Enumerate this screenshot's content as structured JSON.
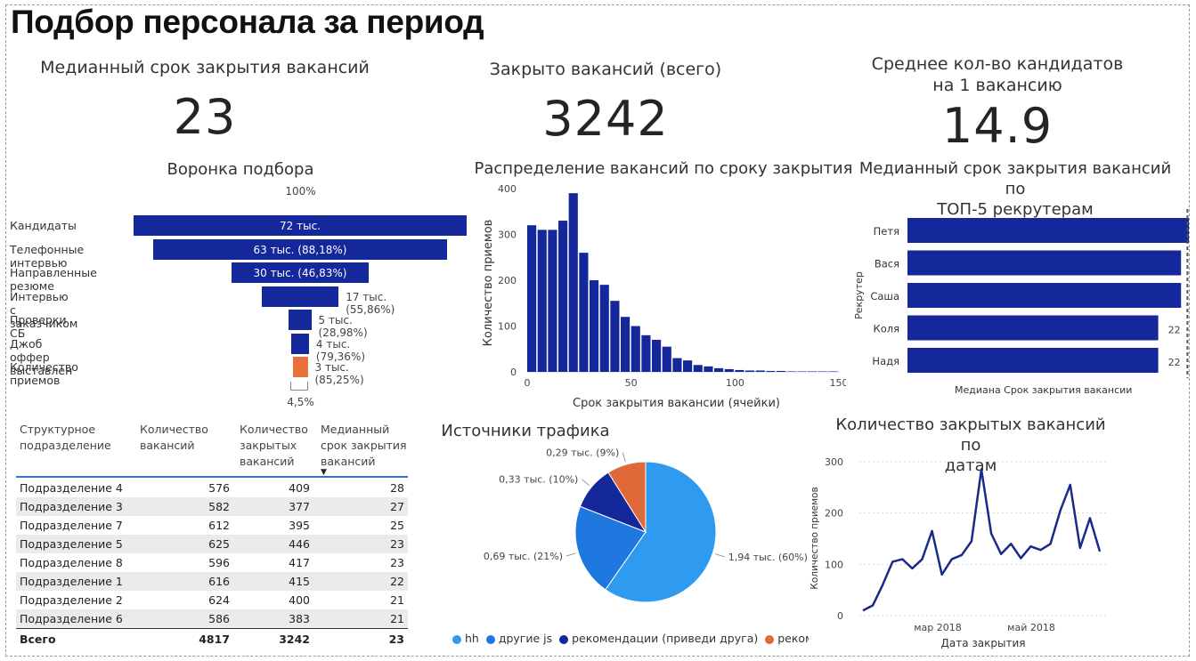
{
  "page": {
    "title": "Подбор персонала за период"
  },
  "kpis": {
    "median_close": {
      "label": "Медианный срок закрытия вакансий",
      "value": "23"
    },
    "closed_total": {
      "label": "Закрыто вакансий (всего)",
      "value": "3242"
    },
    "avg_candidates": {
      "label_line1": "Среднее кол-во кандидатов",
      "label_line2": "на 1 вакансию",
      "value": "14.9"
    }
  },
  "funnel": {
    "title": "Воронка подбора",
    "top_percent": "100%",
    "bottom_percent": "4,5%",
    "stages": [
      {
        "label": "Кандидаты",
        "value_label": "72 тыс.",
        "fraction": 1.0,
        "color": "#15289b"
      },
      {
        "label": "Телефонные интервью",
        "value_label": "63 тыс. (88,18%)",
        "fraction": 0.882,
        "color": "#15289b"
      },
      {
        "label": "Направленные резюме",
        "value_label": "30 тыс. (46,83%)",
        "fraction": 0.413,
        "color": "#15289b"
      },
      {
        "label": "Интервью с заказчиком",
        "value_label": "17 тыс. (55,86%)",
        "fraction": 0.231,
        "color": "#15289b"
      },
      {
        "label": "Проверки СБ",
        "value_label": "5 тыс. (28,98%)",
        "fraction": 0.067,
        "color": "#15289b"
      },
      {
        "label": "Джоб оффер выставлен",
        "value_label": "4 тыс. (79,36%)",
        "fraction": 0.053,
        "color": "#15289b"
      },
      {
        "label": "Количество приемов",
        "value_label": "3 тыс. (85,25%)",
        "fraction": 0.045,
        "color": "#e8703a"
      }
    ]
  },
  "histogram": {
    "title": "Распределение вакансий по сроку закрытия",
    "xlabel": "Срок закрытия вакансии (ячейки)",
    "ylabel": "Количество приемов",
    "y_ticks": [
      "0",
      "100",
      "200",
      "300",
      "400"
    ],
    "x_ticks": [
      "0",
      "50",
      "100",
      "150"
    ]
  },
  "recruiters": {
    "title_line1": "Медианный срок закрытия вакансий по",
    "title_line2": "ТОП-5 рекрутерам",
    "ylabel": "Рекрутер",
    "xlabel": "Медиана Срок закрытия вакансии",
    "color": "#15289b"
  },
  "table": {
    "headers": [
      [
        "Структурное",
        "подразделение"
      ],
      [
        "Количество",
        "вакансий"
      ],
      [
        "Количество",
        "закрытых",
        "вакансий"
      ],
      [
        "Медианный",
        "срок закрытия",
        "вакансий"
      ]
    ],
    "sort_icon": "sort-down-icon",
    "rows": [
      [
        "Подразделение 4",
        "576",
        "409",
        "28"
      ],
      [
        "Подразделение 3",
        "582",
        "377",
        "27"
      ],
      [
        "Подразделение 7",
        "612",
        "395",
        "25"
      ],
      [
        "Подразделение 5",
        "625",
        "446",
        "23"
      ],
      [
        "Подразделение 8",
        "596",
        "417",
        "23"
      ],
      [
        "Подразделение 1",
        "616",
        "415",
        "22"
      ],
      [
        "Подразделение 2",
        "624",
        "400",
        "21"
      ],
      [
        "Подразделение 6",
        "586",
        "383",
        "21"
      ]
    ],
    "total": [
      "Всего",
      "4817",
      "3242",
      "23"
    ]
  },
  "traffic": {
    "title": "Источники трафика",
    "legend": [
      "hh",
      "другие js",
      "рекомендации (приведи друга)",
      "рекомен"
    ]
  },
  "line_chart": {
    "title_line1": "Количество закрытых вакансий по",
    "title_line2": "датам",
    "ylabel": "Количество приемов",
    "xlabel": "Дата закрытия",
    "y_ticks": [
      "0",
      "100",
      "200",
      "300"
    ],
    "x_ticks": [
      "мар 2018",
      "май 2018"
    ]
  },
  "chart_data": [
    {
      "type": "bar",
      "title": "Распределение вакансий по сроку закрытия",
      "xlabel": "Срок закрытия вакансии (ячейки)",
      "ylabel": "Количество приемов",
      "xlim": [
        0,
        150
      ],
      "ylim": [
        0,
        400
      ],
      "bin_width": 5,
      "x": [
        0,
        5,
        10,
        15,
        20,
        25,
        30,
        35,
        40,
        45,
        50,
        55,
        60,
        65,
        70,
        75,
        80,
        85,
        90,
        95,
        100,
        105,
        110,
        115,
        120,
        125,
        130,
        135,
        140,
        145
      ],
      "values": [
        320,
        310,
        310,
        330,
        390,
        260,
        200,
        190,
        155,
        120,
        100,
        80,
        70,
        55,
        30,
        25,
        15,
        12,
        8,
        6,
        4,
        3,
        3,
        2,
        2,
        1,
        1,
        1,
        1,
        1
      ]
    },
    {
      "type": "bar",
      "orientation": "horizontal",
      "title": "Медианный срок закрытия вакансий по ТОП-5 рекрутерам",
      "xlabel": "Медиана Срок закрытия вакансии",
      "ylabel": "Рекрутер",
      "categories": [
        "Петя",
        "Вася",
        "Саша",
        "Коля",
        "Надя"
      ],
      "values": [
        25,
        24,
        24,
        22,
        22
      ],
      "reference_line": 23
    },
    {
      "type": "pie",
      "title": "Источники трафика",
      "categories": [
        "hh",
        "другие js",
        "рекомендации (приведи друга)",
        "рекомен"
      ],
      "values": [
        1.94,
        0.69,
        0.33,
        0.29
      ],
      "labels": [
        "1,94 тыс. (60%)",
        "0,69 тыс. (21%)",
        "0,33 тыс. (10%)",
        "0,29 тыс. (9%)"
      ],
      "colors": [
        "#2e9bf0",
        "#1e78e0",
        "#15289b",
        "#e0693a"
      ]
    },
    {
      "type": "line",
      "title": "Количество закрытых вакансий по датам",
      "xlabel": "Дата закрытия",
      "ylabel": "Количество приемов",
      "ylim": [
        0,
        300
      ],
      "values": [
        10,
        20,
        60,
        105,
        110,
        92,
        110,
        165,
        80,
        110,
        118,
        145,
        285,
        160,
        120,
        140,
        112,
        135,
        128,
        140,
        205,
        255,
        132,
        190,
        125
      ],
      "color": "#1a2a8a"
    }
  ]
}
